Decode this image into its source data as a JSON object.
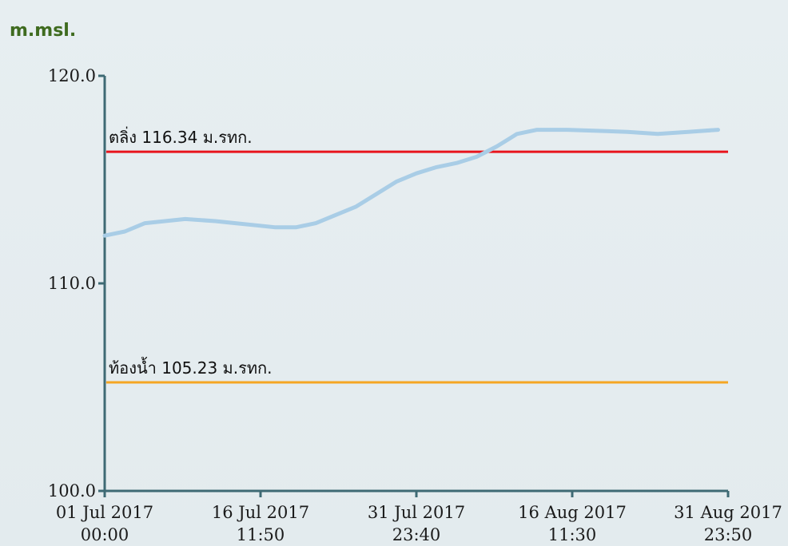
{
  "chart_data": {
    "type": "line",
    "unit_label": "m.msl.",
    "y_ticks": [
      "100.0",
      "110.0",
      "120.0"
    ],
    "ylim": [
      100,
      120
    ],
    "x_tick_labels": [
      {
        "date": "01 Jul 2017",
        "time": "00:00"
      },
      {
        "date": "16 Jul 2017",
        "time": "11:50"
      },
      {
        "date": "31 Jul 2017",
        "time": "23:40"
      },
      {
        "date": "16 Aug 2017",
        "time": "11:30"
      },
      {
        "date": "31 Aug 2017",
        "time": "23:50"
      }
    ],
    "xlim": [
      "2017-07-01",
      "2017-08-31"
    ],
    "grid": false,
    "reference_lines": [
      {
        "label": "ตลิ่ง 116.34 ม.รทก.",
        "value": 116.34,
        "color": "#e8141c"
      },
      {
        "label": "ท้องน้ำ 105.23 ม.รทก.",
        "value": 105.23,
        "color": "#f5a623"
      }
    ],
    "series": [
      {
        "color": "#a9cde6",
        "points": [
          [
            "2017-07-01",
            112.3
          ],
          [
            "2017-07-03",
            112.5
          ],
          [
            "2017-07-05",
            112.9
          ],
          [
            "2017-07-07",
            113.0
          ],
          [
            "2017-07-09",
            113.1
          ],
          [
            "2017-07-12",
            113.0
          ],
          [
            "2017-07-14",
            112.9
          ],
          [
            "2017-07-16",
            112.8
          ],
          [
            "2017-07-18",
            112.7
          ],
          [
            "2017-07-20",
            112.7
          ],
          [
            "2017-07-22",
            112.9
          ],
          [
            "2017-07-24",
            113.3
          ],
          [
            "2017-07-26",
            113.7
          ],
          [
            "2017-07-28",
            114.3
          ],
          [
            "2017-07-30",
            114.9
          ],
          [
            "2017-08-01",
            115.3
          ],
          [
            "2017-08-03",
            115.6
          ],
          [
            "2017-08-05",
            115.8
          ],
          [
            "2017-08-07",
            116.1
          ],
          [
            "2017-08-09",
            116.6
          ],
          [
            "2017-08-11",
            117.2
          ],
          [
            "2017-08-13",
            117.4
          ],
          [
            "2017-08-16",
            117.4
          ],
          [
            "2017-08-19",
            117.35
          ],
          [
            "2017-08-22",
            117.3
          ],
          [
            "2017-08-25",
            117.2
          ],
          [
            "2017-08-28",
            117.3
          ],
          [
            "2017-08-31",
            117.4
          ]
        ]
      }
    ]
  }
}
